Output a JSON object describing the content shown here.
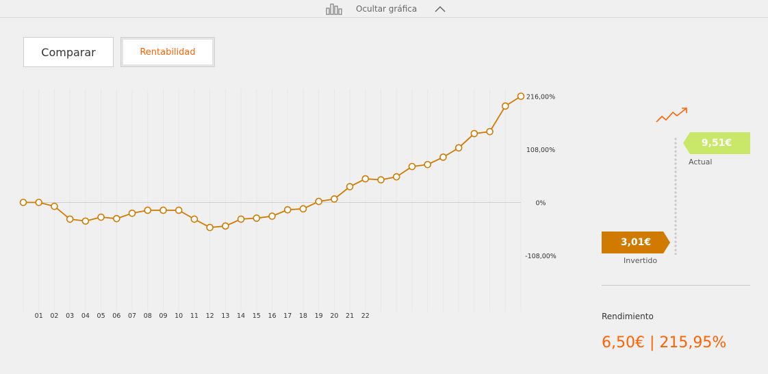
{
  "toggle": {
    "label": "Ocultar gráfica"
  },
  "buttons": {
    "compare": "Comparar",
    "profitability": "Rentabilidad"
  },
  "colors": {
    "accent": "#ff6200",
    "line": "#d17a00",
    "actual": "#c9e869",
    "invested": "#d17a00"
  },
  "icons": [
    "bar-chart-icon",
    "chevron-up-icon",
    "trend-up-icon"
  ],
  "summary": {
    "actual_value": "9,51€",
    "actual_label": "Actual",
    "invested_value": "3,01€",
    "invested_label": "Invertido",
    "return_label": "Rendimiento",
    "return_value": "6,50€ | 215,95%"
  },
  "chart_data": {
    "type": "line",
    "title": "",
    "xlabel": "",
    "ylabel": "",
    "ylim": [
      -108,
      216
    ],
    "yticks": [
      "216,00%",
      "108,00%",
      "0%",
      "-108,00%"
    ],
    "ytick_values": [
      216,
      108,
      0,
      -108
    ],
    "x_labels": [
      "01",
      "02",
      "03",
      "04",
      "05",
      "06",
      "07",
      "08",
      "09",
      "10",
      "11",
      "12",
      "13",
      "14",
      "15",
      "16",
      "17",
      "18",
      "19",
      "20",
      "21",
      "22"
    ],
    "series": [
      {
        "values": [
          0,
          0,
          -8,
          -34,
          -38,
          -30,
          -33,
          -22,
          -16,
          -16,
          -16,
          -34,
          -51,
          -48,
          -34,
          -32,
          -28,
          -15,
          -13,
          2,
          7,
          32,
          48,
          46,
          52,
          73,
          77,
          92,
          111,
          140,
          144,
          196,
          216
        ]
      }
    ],
    "grid": false,
    "legend": "none"
  }
}
